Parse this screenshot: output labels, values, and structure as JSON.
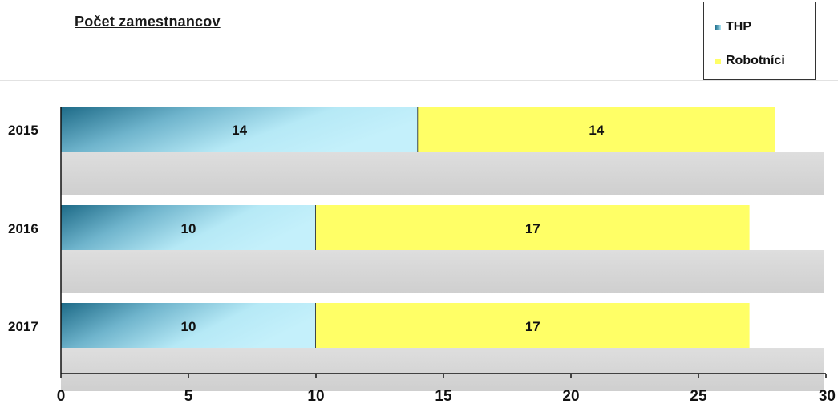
{
  "title": "Počet zamestnancov",
  "legend": {
    "items": [
      {
        "label": "THP",
        "color": "#7ec8dc"
      },
      {
        "label": "Robotníci",
        "color": "#ffff66"
      }
    ]
  },
  "chart_data": {
    "type": "bar",
    "orientation": "horizontal",
    "stacked": true,
    "title": "Počet zamestnancov",
    "categories": [
      "2015",
      "2016",
      "2017"
    ],
    "series": [
      {
        "name": "THP",
        "values": [
          14,
          10,
          10
        ],
        "color": "#7ec8dc"
      },
      {
        "name": "Robotníci",
        "values": [
          14,
          17,
          17
        ],
        "color": "#ffff66"
      }
    ],
    "xlim": [
      0,
      30
    ],
    "xticks": [
      0,
      5,
      10,
      15,
      20,
      25,
      30
    ],
    "grid": false,
    "legend_position": "top-right"
  }
}
